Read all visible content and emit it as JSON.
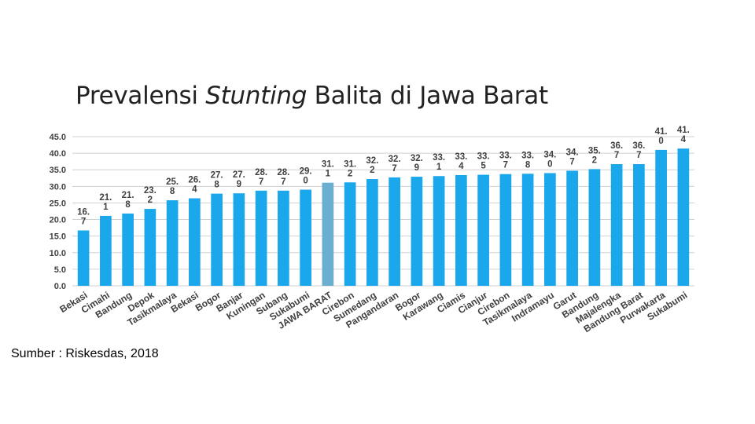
{
  "slide": {
    "title_pre": "Prevalensi ",
    "title_em": "Stunting",
    "title_post": " Balita di Jawa Barat",
    "source": "Sumber : Riskesdas, 2018"
  },
  "chart_data": {
    "type": "bar",
    "title": "",
    "xlabel": "",
    "ylabel": "",
    "ylim": [
      0,
      45
    ],
    "yticks": [
      "0.0",
      "5.0",
      "10.0",
      "15.0",
      "20.0",
      "25.0",
      "30.0",
      "35.0",
      "40.0",
      "45.0"
    ],
    "grid": true,
    "legend": "none",
    "colors": {
      "bar": "#1aa7ec",
      "highlight": "#6aaed0",
      "grid": "#d0d0d0",
      "label": "#404040"
    },
    "highlight_category": "JAWA BARAT",
    "categories": [
      "Bekasi",
      "Cimahi",
      "Bandung",
      "Depok",
      "Tasikmalaya",
      "Bekasi",
      "Bogor",
      "Banjar",
      "Kuningan",
      "Subang",
      "Sukabumi",
      "JAWA BARAT",
      "Cirebon",
      "Sumedang",
      "Pangandaran",
      "Bogor",
      "Karawang",
      "Ciamis",
      "Cianjur",
      "Cirebon",
      "Tasikmalaya",
      "Indramayu",
      "Garut",
      "Bandung",
      "Majalengka",
      "Bandung Barat",
      "Purwakarta",
      "Sukabumi"
    ],
    "values": [
      16.7,
      21.1,
      21.8,
      23.2,
      25.8,
      26.4,
      27.8,
      27.9,
      28.7,
      28.7,
      29.0,
      31.1,
      31.2,
      32.2,
      32.7,
      32.9,
      33.1,
      33.4,
      33.5,
      33.7,
      33.8,
      34.0,
      34.7,
      35.2,
      36.7,
      36.7,
      41.0,
      41.4
    ],
    "value_labels": [
      [
        "16.",
        "7"
      ],
      [
        "21.",
        "1"
      ],
      [
        "21.",
        "8"
      ],
      [
        "23.",
        "2"
      ],
      [
        "25.",
        "8"
      ],
      [
        "26.",
        "4"
      ],
      [
        "27.",
        "8"
      ],
      [
        "27.",
        "9"
      ],
      [
        "28.",
        "7"
      ],
      [
        "28.",
        "7"
      ],
      [
        "29.",
        "0"
      ],
      [
        "31.",
        "1"
      ],
      [
        "31.",
        "2"
      ],
      [
        "32.",
        "2"
      ],
      [
        "32.",
        "7"
      ],
      [
        "32.",
        "9"
      ],
      [
        "33.",
        "1"
      ],
      [
        "33.",
        "4"
      ],
      [
        "33.",
        "5"
      ],
      [
        "33.",
        "7"
      ],
      [
        "33.",
        "8"
      ],
      [
        "34.",
        "0"
      ],
      [
        "34.",
        "7"
      ],
      [
        "35.",
        "2"
      ],
      [
        "36.",
        "7"
      ],
      [
        "36.",
        "7"
      ],
      [
        "41.",
        "0"
      ],
      [
        "41.",
        "4"
      ]
    ]
  }
}
